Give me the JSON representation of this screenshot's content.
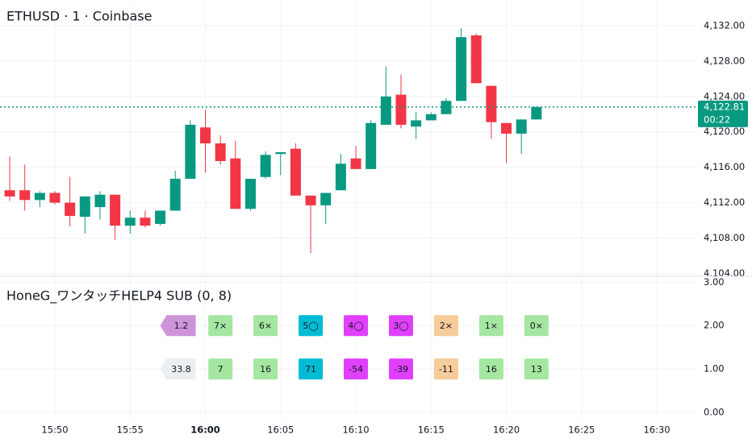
{
  "chart_data": [
    {
      "type": "candlestick",
      "title": "ETHUSD · 1 · Coinbase",
      "x": [
        "15:47",
        "15:48",
        "15:49",
        "15:50",
        "15:51",
        "15:52",
        "15:53",
        "15:54",
        "15:55",
        "15:56",
        "15:57",
        "15:58",
        "15:59",
        "16:00",
        "16:01",
        "16:02",
        "16:03",
        "16:04",
        "16:05",
        "16:06",
        "16:07",
        "16:08",
        "16:09",
        "16:10",
        "16:11",
        "16:12",
        "16:13",
        "16:14",
        "16:15",
        "16:16",
        "16:17",
        "16:18",
        "16:19",
        "16:20",
        "16:21",
        "16:22"
      ],
      "open": [
        4113.4,
        4113.4,
        4112.3,
        4113.1,
        4112.0,
        4110.4,
        4111.5,
        4112.9,
        4109.4,
        4110.3,
        4109.6,
        4111.1,
        4114.7,
        4120.5,
        4118.7,
        4117.0,
        4111.3,
        4114.9,
        4117.5,
        4118.1,
        4112.8,
        4111.7,
        4113.4,
        4117.0,
        4115.8,
        4120.8,
        4124.2,
        4120.6,
        4121.3,
        4122.0,
        4123.5,
        4130.9,
        4125.2,
        4121.0,
        4119.8,
        4121.4
      ],
      "high": [
        4117.2,
        4116.3,
        4113.3,
        4113.3,
        4114.9,
        4112.7,
        4113.3,
        4112.9,
        4111.1,
        4111.1,
        4111.1,
        4115.6,
        4121.3,
        4122.5,
        4119.6,
        4119.0,
        4114.7,
        4117.8,
        4117.7,
        4118.7,
        4112.8,
        4113.1,
        4117.5,
        4118.4,
        4121.3,
        4127.4,
        4126.5,
        4122.2,
        4122.2,
        4123.8,
        4131.7,
        4131.1,
        4125.2,
        4121.0,
        4121.4,
        4122.81
      ],
      "low": [
        4112.2,
        4111.1,
        4111.5,
        4111.8,
        4109.3,
        4108.5,
        4110.1,
        4107.8,
        4108.5,
        4109.2,
        4109.4,
        4111.1,
        4114.7,
        4115.4,
        4116.3,
        4111.3,
        4111.1,
        4114.7,
        4115.1,
        4112.8,
        4106.3,
        4109.6,
        4113.4,
        4115.8,
        4115.8,
        4120.8,
        4120.4,
        4119.2,
        4121.3,
        4122.0,
        4123.5,
        4125.5,
        4119.2,
        4116.5,
        4117.5,
        4121.4
      ],
      "close": [
        4112.7,
        4112.3,
        4113.1,
        4112.0,
        4110.5,
        4112.7,
        4112.9,
        4109.4,
        4110.3,
        4109.4,
        4111.1,
        4114.7,
        4120.8,
        4118.7,
        4116.7,
        4111.3,
        4114.7,
        4117.4,
        4117.7,
        4112.8,
        4111.7,
        4113.1,
        4116.4,
        4115.8,
        4121.0,
        4124.0,
        4120.8,
        4121.3,
        4122.0,
        4123.5,
        4130.7,
        4125.5,
        4121.1,
        4119.8,
        4121.4,
        4122.81
      ],
      "up_color": "#089981",
      "down_color": "#f23645",
      "last_price": {
        "value": 4122.81,
        "label": "4,122.81"
      },
      "countdown": "00:22",
      "xlim": [
        "15:46",
        "16:33"
      ],
      "xticks": [
        "15:50",
        "15:55",
        "16:00",
        "16:05",
        "16:10",
        "16:15",
        "16:20",
        "16:25",
        "16:30"
      ],
      "ylim": [
        4103.5,
        4134.9
      ],
      "yticks": [
        {
          "value": 4104,
          "label": "4,104.00"
        },
        {
          "value": 4108,
          "label": "4,108.00"
        },
        {
          "value": 4112,
          "label": "4,112.00"
        },
        {
          "value": 4116,
          "label": "4,116.00"
        },
        {
          "value": 4120,
          "label": "4,120.00"
        },
        {
          "value": 4124,
          "label": "4,124.00"
        },
        {
          "value": 4128,
          "label": "4,128.00"
        },
        {
          "value": 4132,
          "label": "4,132.00"
        }
      ],
      "grid": true
    },
    {
      "type": "labels",
      "title": "HoneG_ワンタッチHELP4 SUB (0, 8)",
      "ylim": [
        -0.15,
        3.1
      ],
      "yticks": [
        {
          "value": 0,
          "label": "0.00"
        },
        {
          "value": 1,
          "label": "1.00"
        },
        {
          "value": 2,
          "label": "2.00"
        },
        {
          "value": 3,
          "label": "3.00"
        }
      ],
      "grid": true,
      "points": [
        {
          "x": "15:57",
          "y": 2,
          "label": "1.2",
          "color": "#ce93d8",
          "style": "left"
        },
        {
          "x": "16:01",
          "y": 2,
          "label": "7×",
          "color": "#a5e6a0"
        },
        {
          "x": "16:04",
          "y": 2,
          "label": "6×",
          "color": "#a5e6a0"
        },
        {
          "x": "16:07",
          "y": 2,
          "label": "5◯",
          "color": "#00bcd4"
        },
        {
          "x": "16:10",
          "y": 2,
          "label": "4◯",
          "color": "#e040fb"
        },
        {
          "x": "16:13",
          "y": 2,
          "label": "3◯",
          "color": "#e040fb"
        },
        {
          "x": "16:16",
          "y": 2,
          "label": "2×",
          "color": "#f5cc9a"
        },
        {
          "x": "16:19",
          "y": 2,
          "label": "1×",
          "color": "#a5e6a0"
        },
        {
          "x": "16:22",
          "y": 2,
          "label": "0×",
          "color": "#a5e6a0"
        },
        {
          "x": "15:57",
          "y": 1,
          "label": "33.8",
          "color": "#eceff1",
          "style": "left"
        },
        {
          "x": "16:01",
          "y": 1,
          "label": "7",
          "color": "#a5e6a0"
        },
        {
          "x": "16:04",
          "y": 1,
          "label": "16",
          "color": "#a5e6a0"
        },
        {
          "x": "16:07",
          "y": 1,
          "label": "71",
          "color": "#00bcd4"
        },
        {
          "x": "16:10",
          "y": 1,
          "label": "-54",
          "color": "#e040fb"
        },
        {
          "x": "16:13",
          "y": 1,
          "label": "-39",
          "color": "#e040fb"
        },
        {
          "x": "16:16",
          "y": 1,
          "label": "-11",
          "color": "#f5cc9a"
        },
        {
          "x": "16:19",
          "y": 1,
          "label": "16",
          "color": "#a5e6a0"
        },
        {
          "x": "16:22",
          "y": 1,
          "label": "13",
          "color": "#a5e6a0"
        }
      ]
    }
  ]
}
